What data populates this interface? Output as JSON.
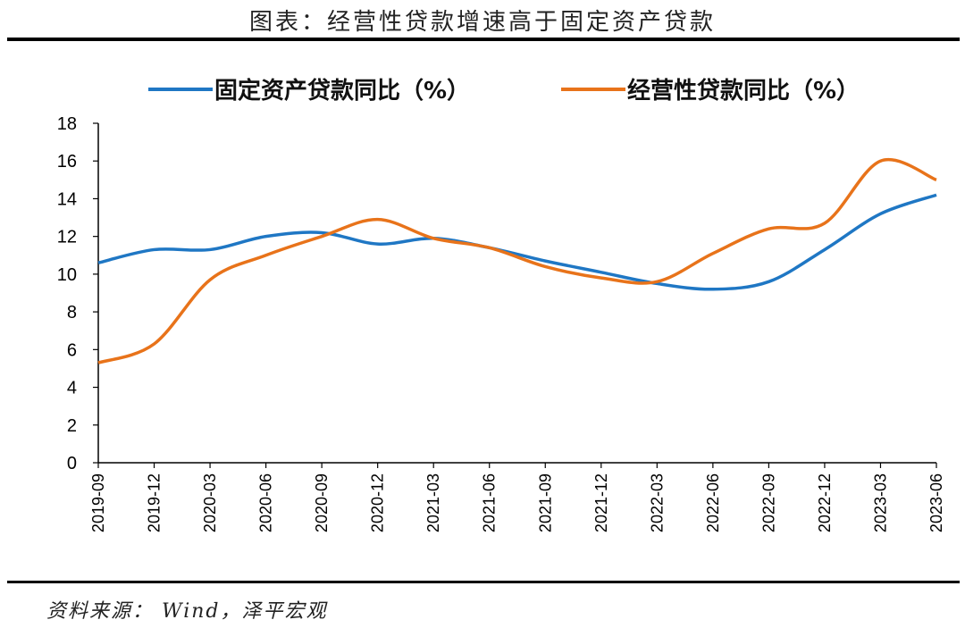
{
  "figure_title": "图表：经营性贷款增速高于固定资产贷款",
  "source_note": "资料来源：  Wind，泽平宏观",
  "colors": {
    "series_fixed": "#1f77c4",
    "series_operating": "#e8731a",
    "axis": "#000000"
  },
  "chart_data": {
    "type": "line",
    "title": "",
    "xlabel": "",
    "ylabel": "",
    "ylim": [
      0,
      18
    ],
    "yticks": [
      0,
      2,
      4,
      6,
      8,
      10,
      12,
      14,
      16,
      18
    ],
    "grid": false,
    "legend_position": "top",
    "x": [
      "2019-09",
      "2019-12",
      "2020-03",
      "2020-06",
      "2020-09",
      "2020-12",
      "2021-03",
      "2021-06",
      "2021-09",
      "2021-12",
      "2022-03",
      "2022-06",
      "2022-09",
      "2022-12",
      "2023-03",
      "2023-06"
    ],
    "series": [
      {
        "name": "固定资产贷款同比（%）",
        "color": "#1f77c4",
        "values": [
          10.6,
          11.3,
          11.3,
          12.0,
          12.2,
          11.6,
          11.9,
          11.4,
          10.7,
          10.1,
          9.5,
          9.2,
          9.6,
          11.3,
          13.2,
          14.2
        ]
      },
      {
        "name": "经营性贷款同比（%）",
        "color": "#e8731a",
        "values": [
          5.3,
          6.3,
          9.7,
          11.0,
          12.0,
          12.9,
          11.9,
          11.4,
          10.4,
          9.8,
          9.6,
          11.1,
          12.4,
          12.7,
          16.0,
          15.0
        ]
      }
    ]
  }
}
